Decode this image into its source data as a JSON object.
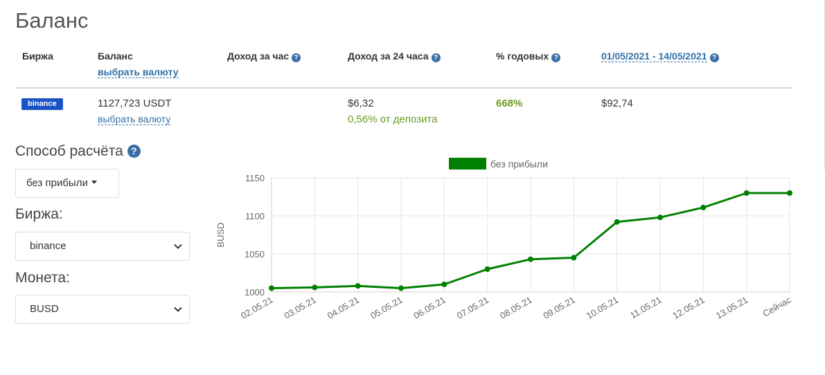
{
  "page": {
    "title": "Баланс"
  },
  "table": {
    "headers": {
      "exchange": "Биржа",
      "balance": "Баланс",
      "balance_link": "выбрать валюту",
      "income_hour": "Доход за час",
      "income_24h": "Доход за 24 часа",
      "annual": "% годовых",
      "date_range": "01/05/2021 - 14/05/2021"
    },
    "row": {
      "exchange_badge": "binance",
      "balance": "1127,723 USDT",
      "balance_link": "выбрать валюту",
      "income_24h": "$6,32",
      "income_24h_pct": "0,56% от депозита",
      "annual": "668%",
      "period_income": "$92,74"
    }
  },
  "calc": {
    "label": "Способ расчёта",
    "dropdown_value": "без прибыли"
  },
  "exchange": {
    "label": "Биржа:",
    "value": "binance"
  },
  "coin": {
    "label": "Монета:",
    "value": "BUSD"
  },
  "icons": {
    "help": "question-circle-icon",
    "select": "chevron-down-icon",
    "dropdown": "caret-down-icon"
  },
  "colors": {
    "link": "#3071a9",
    "badge": "#1a54c4",
    "positive": "#6b9a1f",
    "series": "#008000"
  },
  "chart_data": {
    "type": "line",
    "x": [
      "02.05.21",
      "03.05.21",
      "04.05.21",
      "05.05.21",
      "06.05.21",
      "07.05.21",
      "08.05.21",
      "09.05.21",
      "10.05.21",
      "11.05.21",
      "12.05.21",
      "13.05.21",
      "Сейчас"
    ],
    "series": [
      {
        "name": "без прибыли",
        "values": [
          1005,
          1006,
          1008,
          1005,
          1010,
          1030,
          1043,
          1045,
          1092,
          1098,
          1111,
          1130,
          1130
        ],
        "color": "#008000"
      }
    ],
    "ylabel": "BUSD",
    "yticks": [
      1000,
      1050,
      1100,
      1150
    ],
    "ylim": [
      1000,
      1150
    ],
    "grid": true,
    "legend": "top-center"
  }
}
